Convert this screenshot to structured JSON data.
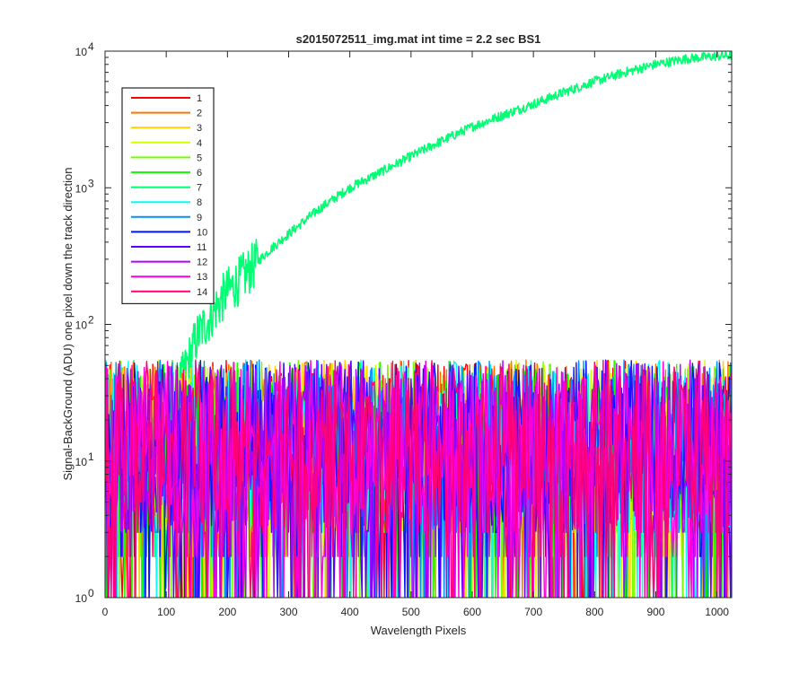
{
  "chart_data": {
    "type": "line",
    "title": "s2015072511_img.mat int time = 2.2 sec   BS1",
    "xlabel": "Wavelength Pixels",
    "ylabel": "Signal-BackGround (ADU) one pixel down the track direction",
    "xlim": [
      0,
      1024
    ],
    "ylim": [
      1,
      10000
    ],
    "yscale": "log",
    "x_ticks": [
      "0",
      "100",
      "200",
      "300",
      "400",
      "500",
      "600",
      "700",
      "800",
      "900",
      "1000"
    ],
    "x_tick_values": [
      0,
      100,
      200,
      300,
      400,
      500,
      600,
      700,
      800,
      900,
      1000
    ],
    "y_tick_exponents": [
      "0",
      "1",
      "2",
      "3",
      "4"
    ],
    "y_tick_values": [
      1,
      10,
      100,
      1000,
      10000
    ],
    "y_tick_base": "10",
    "grid": false,
    "legend_position": "top-left",
    "series": [
      {
        "name": "1",
        "color": "#ff0000",
        "profile": "noise"
      },
      {
        "name": "2",
        "color": "#ff7300",
        "profile": "noise"
      },
      {
        "name": "3",
        "color": "#ffd200",
        "profile": "noise"
      },
      {
        "name": "4",
        "color": "#d2ff00",
        "profile": "noise"
      },
      {
        "name": "5",
        "color": "#73ff00",
        "profile": "noise"
      },
      {
        "name": "6",
        "color": "#12ff00",
        "profile": "noise"
      },
      {
        "name": "7",
        "color": "#00ff73",
        "profile": "signal",
        "x": [
          0,
          100,
          110,
          120,
          130,
          140,
          150,
          160,
          170,
          180,
          190,
          200,
          220,
          250,
          275,
          300,
          350,
          400,
          450,
          500,
          550,
          600,
          650,
          700,
          750,
          800,
          850,
          900,
          950,
          1000,
          1024
        ],
        "values": [
          1,
          1,
          25,
          35,
          45,
          60,
          80,
          95,
          110,
          130,
          150,
          175,
          210,
          290,
          370,
          460,
          700,
          1000,
          1300,
          1700,
          2200,
          2800,
          3400,
          4100,
          5000,
          6000,
          7000,
          8000,
          8800,
          9200,
          9300
        ]
      },
      {
        "name": "8",
        "color": "#00ffff",
        "profile": "noise"
      },
      {
        "name": "9",
        "color": "#0090ff",
        "profile": "noise"
      },
      {
        "name": "10",
        "color": "#0014ff",
        "profile": "noise"
      },
      {
        "name": "11",
        "color": "#5a00ff",
        "profile": "noise"
      },
      {
        "name": "12",
        "color": "#b400ff",
        "profile": "noise"
      },
      {
        "name": "13",
        "color": "#ff00dc",
        "profile": "noise"
      },
      {
        "name": "14",
        "color": "#ff0078",
        "profile": "noise"
      }
    ],
    "noise_range": [
      1,
      55
    ]
  }
}
